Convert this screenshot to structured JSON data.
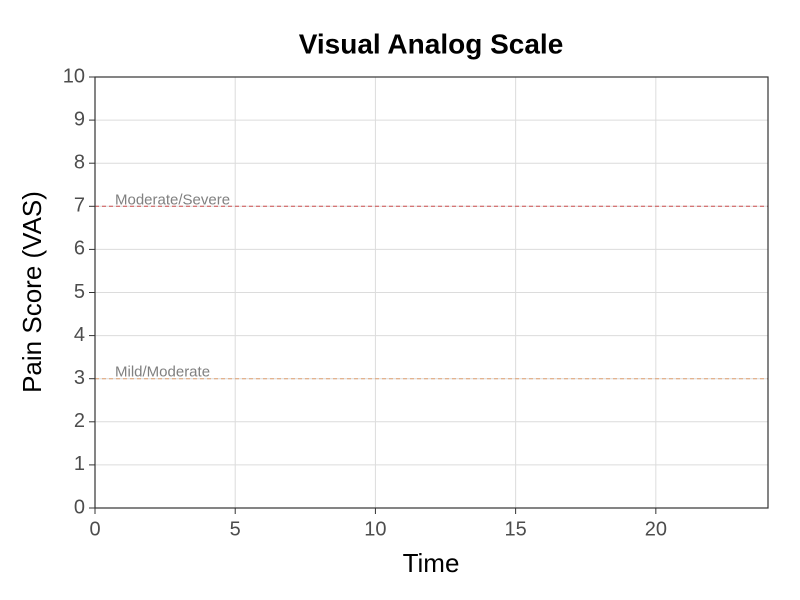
{
  "chart_data": {
    "type": "line",
    "title": "Visual Analog Scale",
    "x_label": "Time",
    "y_label": "Pain Score (VAS)",
    "xlim": [
      0,
      24
    ],
    "xticks": [
      0,
      5,
      10,
      15,
      20
    ],
    "ylim": [
      0,
      10
    ],
    "yticks": [
      0,
      1,
      2,
      3,
      4,
      5,
      6,
      7,
      8,
      9,
      10
    ],
    "grid": true,
    "series": [],
    "reference_lines": [
      {
        "label": "Moderate/Severe",
        "y": 7,
        "color": "#cd4f4f"
      },
      {
        "label": "Mild/Moderate",
        "y": 3,
        "color": "#e0a070"
      }
    ]
  }
}
